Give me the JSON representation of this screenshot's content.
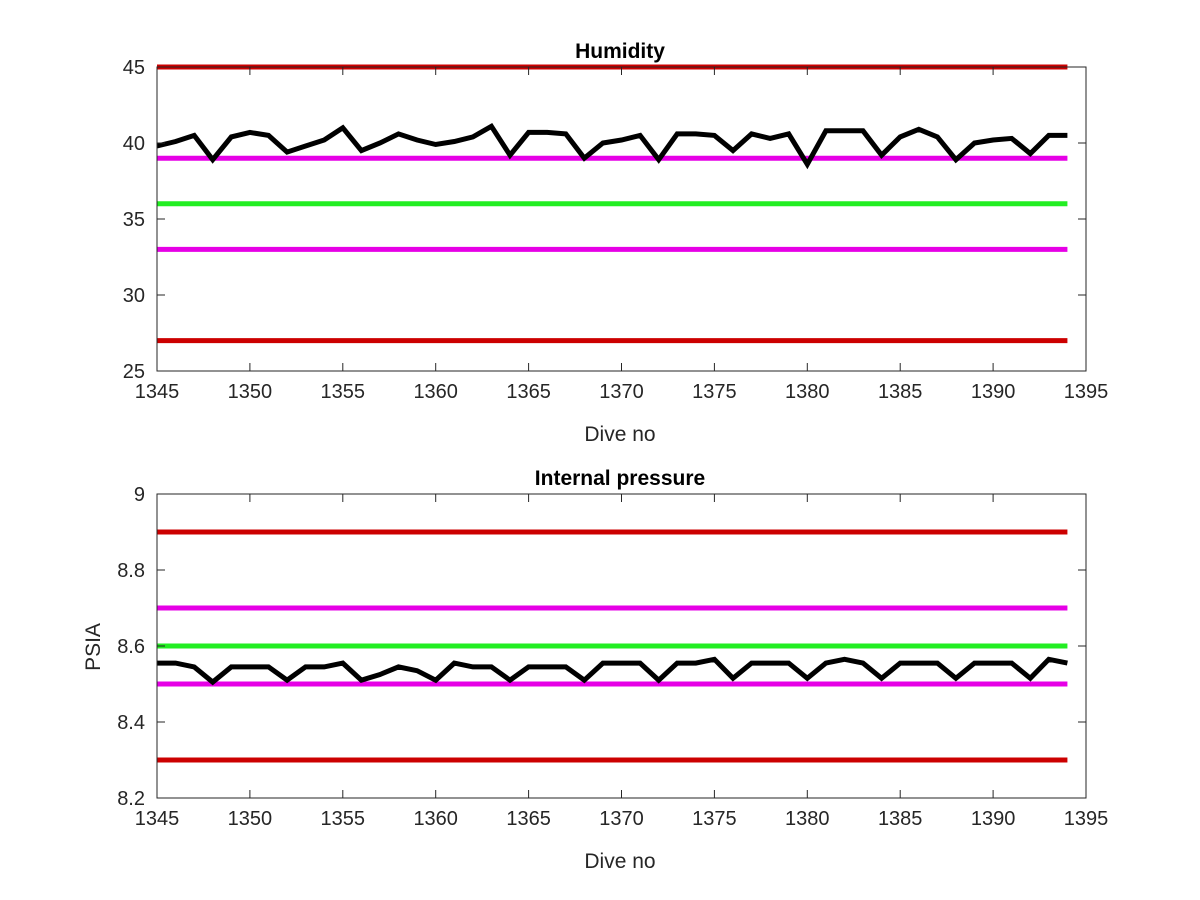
{
  "chart_data": [
    {
      "type": "line",
      "title": "Humidity",
      "xlabel": "Dive no",
      "ylabel": "",
      "xlim": [
        1345,
        1395
      ],
      "ylim": [
        25,
        45
      ],
      "xticks": [
        1345,
        1350,
        1355,
        1360,
        1365,
        1370,
        1375,
        1380,
        1385,
        1390,
        1395
      ],
      "yticks": [
        25,
        30,
        35,
        40,
        45
      ],
      "tick_labels_x": [
        "1345",
        "1350",
        "1355",
        "1360",
        "1365",
        "1370",
        "1375",
        "1380",
        "1385",
        "1390",
        "1395"
      ],
      "tick_labels_y": [
        "25",
        "30",
        "35",
        "40",
        "45"
      ],
      "grid": false,
      "x": [
        1345,
        1346,
        1347,
        1348,
        1349,
        1350,
        1351,
        1352,
        1353,
        1354,
        1355,
        1356,
        1357,
        1358,
        1359,
        1360,
        1361,
        1362,
        1363,
        1364,
        1365,
        1366,
        1367,
        1368,
        1369,
        1370,
        1371,
        1372,
        1373,
        1374,
        1375,
        1376,
        1377,
        1378,
        1379,
        1380,
        1381,
        1382,
        1383,
        1384,
        1385,
        1386,
        1387,
        1388,
        1389,
        1390,
        1391,
        1392,
        1393,
        1394
      ],
      "series": [
        {
          "color": "#000000",
          "values": [
            39.8,
            40.1,
            40.5,
            38.9,
            40.4,
            40.7,
            40.5,
            39.4,
            39.8,
            40.2,
            41.0,
            39.5,
            40.0,
            40.6,
            40.2,
            39.9,
            40.1,
            40.4,
            41.1,
            39.2,
            40.7,
            40.7,
            40.6,
            39.0,
            40.0,
            40.2,
            40.5,
            38.9,
            40.6,
            40.6,
            40.5,
            39.5,
            40.6,
            40.3,
            40.6,
            38.6,
            40.8,
            40.8,
            40.8,
            39.2,
            40.4,
            40.9,
            40.4,
            38.9,
            40.0,
            40.2,
            40.3,
            39.3,
            40.5,
            40.5
          ]
        }
      ],
      "reference_lines": [
        {
          "y": 45,
          "color": "#cc0000"
        },
        {
          "y": 39,
          "color": "#e600e6"
        },
        {
          "y": 36,
          "color": "#22ee22"
        },
        {
          "y": 33,
          "color": "#e600e6"
        },
        {
          "y": 27,
          "color": "#cc0000"
        }
      ]
    },
    {
      "type": "line",
      "title": "Internal pressure",
      "xlabel": "Dive no",
      "ylabel": "PSIA",
      "xlim": [
        1345,
        1395
      ],
      "ylim": [
        8.2,
        9
      ],
      "xticks": [
        1345,
        1350,
        1355,
        1360,
        1365,
        1370,
        1375,
        1380,
        1385,
        1390,
        1395
      ],
      "yticks": [
        8.2,
        8.4,
        8.6,
        8.8,
        9
      ],
      "tick_labels_x": [
        "1345",
        "1350",
        "1355",
        "1360",
        "1365",
        "1370",
        "1375",
        "1380",
        "1385",
        "1390",
        "1395"
      ],
      "tick_labels_y": [
        "8.2",
        "8.4",
        "8.6",
        "8.8",
        "9"
      ],
      "grid": false,
      "x": [
        1345,
        1346,
        1347,
        1348,
        1349,
        1350,
        1351,
        1352,
        1353,
        1354,
        1355,
        1356,
        1357,
        1358,
        1359,
        1360,
        1361,
        1362,
        1363,
        1364,
        1365,
        1366,
        1367,
        1368,
        1369,
        1370,
        1371,
        1372,
        1373,
        1374,
        1375,
        1376,
        1377,
        1378,
        1379,
        1380,
        1381,
        1382,
        1383,
        1384,
        1385,
        1386,
        1387,
        1388,
        1389,
        1390,
        1391,
        1392,
        1393,
        1394
      ],
      "series": [
        {
          "color": "#000000",
          "values": [
            8.555,
            8.555,
            8.545,
            8.505,
            8.545,
            8.545,
            8.545,
            8.51,
            8.545,
            8.545,
            8.555,
            8.51,
            8.525,
            8.545,
            8.535,
            8.51,
            8.555,
            8.545,
            8.545,
            8.51,
            8.545,
            8.545,
            8.545,
            8.51,
            8.555,
            8.555,
            8.555,
            8.51,
            8.555,
            8.555,
            8.565,
            8.515,
            8.555,
            8.555,
            8.555,
            8.515,
            8.555,
            8.565,
            8.555,
            8.515,
            8.555,
            8.555,
            8.555,
            8.515,
            8.555,
            8.555,
            8.555,
            8.515,
            8.565,
            8.555
          ]
        }
      ],
      "reference_lines": [
        {
          "y": 8.9,
          "color": "#cc0000"
        },
        {
          "y": 8.7,
          "color": "#e600e6"
        },
        {
          "y": 8.6,
          "color": "#22ee22"
        },
        {
          "y": 8.5,
          "color": "#e600e6"
        },
        {
          "y": 8.3,
          "color": "#cc0000"
        }
      ]
    }
  ]
}
